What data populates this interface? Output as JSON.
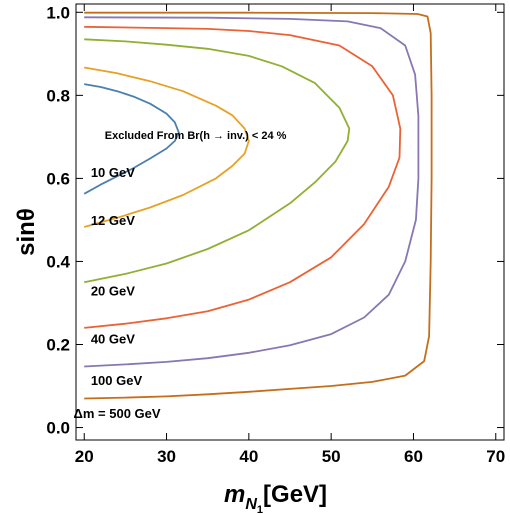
{
  "chart_data": {
    "type": "line",
    "title": "",
    "xlabel": "m",
    "xlabel_sub": "N",
    "xlabel_subsub": "1",
    "xlabel_unit": "[GeV]",
    "ylabel": "sinθ",
    "xlim": [
      19,
      71
    ],
    "ylim": [
      -0.03,
      1.02
    ],
    "xticks": [
      20,
      30,
      40,
      50,
      60,
      70
    ],
    "yticks": [
      0.0,
      0.2,
      0.4,
      0.6,
      0.8,
      1.0
    ],
    "xtick_labels": [
      "20",
      "30",
      "40",
      "50",
      "60",
      "70"
    ],
    "ytick_labels": [
      "0.0",
      "0.2",
      "0.4",
      "0.6",
      "0.8",
      "1.0"
    ],
    "grid": false,
    "annotation": "Excluded From  Br(h → inv.) <  24 %",
    "series": [
      {
        "color": "#4a7fb0",
        "label": "10 GeV",
        "points": [
          [
            20,
            0.563
          ],
          [
            22,
            0.585
          ],
          [
            24,
            0.605
          ],
          [
            26,
            0.625
          ],
          [
            28,
            0.648
          ],
          [
            30,
            0.672
          ],
          [
            31,
            0.69
          ],
          [
            31.5,
            0.71
          ],
          [
            31,
            0.735
          ],
          [
            30,
            0.756
          ],
          [
            28,
            0.78
          ],
          [
            26,
            0.797
          ],
          [
            24,
            0.81
          ],
          [
            22,
            0.82
          ],
          [
            20,
            0.827
          ]
        ]
      },
      {
        "color": "#e6a127",
        "label": "12 GeV",
        "points": [
          [
            20,
            0.483
          ],
          [
            24,
            0.505
          ],
          [
            28,
            0.53
          ],
          [
            32,
            0.56
          ],
          [
            36,
            0.6
          ],
          [
            38,
            0.63
          ],
          [
            39.5,
            0.66
          ],
          [
            40,
            0.69
          ],
          [
            39.5,
            0.72
          ],
          [
            38,
            0.752
          ],
          [
            36,
            0.775
          ],
          [
            32,
            0.81
          ],
          [
            28,
            0.834
          ],
          [
            24,
            0.853
          ],
          [
            20,
            0.867
          ]
        ]
      },
      {
        "color": "#8fb032",
        "label": "20 GeV",
        "points": [
          [
            20,
            0.35
          ],
          [
            25,
            0.37
          ],
          [
            30,
            0.395
          ],
          [
            35,
            0.43
          ],
          [
            40,
            0.475
          ],
          [
            45,
            0.54
          ],
          [
            48,
            0.59
          ],
          [
            50.5,
            0.64
          ],
          [
            52,
            0.69
          ],
          [
            52.2,
            0.72
          ],
          [
            51,
            0.77
          ],
          [
            48,
            0.83
          ],
          [
            44,
            0.87
          ],
          [
            40,
            0.895
          ],
          [
            35,
            0.912
          ],
          [
            30,
            0.922
          ],
          [
            25,
            0.93
          ],
          [
            20,
            0.935
          ]
        ]
      },
      {
        "color": "#eb6235",
        "label": "40 GeV",
        "points": [
          [
            20,
            0.24
          ],
          [
            25,
            0.25
          ],
          [
            30,
            0.263
          ],
          [
            35,
            0.28
          ],
          [
            40,
            0.308
          ],
          [
            45,
            0.35
          ],
          [
            50,
            0.41
          ],
          [
            54,
            0.49
          ],
          [
            57,
            0.58
          ],
          [
            58.3,
            0.65
          ],
          [
            58.4,
            0.72
          ],
          [
            57.5,
            0.8
          ],
          [
            55,
            0.87
          ],
          [
            51,
            0.92
          ],
          [
            45,
            0.945
          ],
          [
            40,
            0.955
          ],
          [
            35,
            0.96
          ],
          [
            30,
            0.962
          ],
          [
            20,
            0.965
          ]
        ]
      },
      {
        "color": "#8778b3",
        "label": "100 GeV",
        "points": [
          [
            20,
            0.147
          ],
          [
            25,
            0.152
          ],
          [
            30,
            0.158
          ],
          [
            35,
            0.167
          ],
          [
            40,
            0.18
          ],
          [
            45,
            0.198
          ],
          [
            50,
            0.225
          ],
          [
            54,
            0.265
          ],
          [
            57,
            0.32
          ],
          [
            59,
            0.4
          ],
          [
            60.3,
            0.5
          ],
          [
            60.6,
            0.6
          ],
          [
            60.6,
            0.75
          ],
          [
            60.2,
            0.85
          ],
          [
            59,
            0.92
          ],
          [
            56,
            0.962
          ],
          [
            52,
            0.978
          ],
          [
            45,
            0.984
          ],
          [
            35,
            0.987
          ],
          [
            20,
            0.988
          ]
        ]
      },
      {
        "color": "#c56e1a",
        "label": "Δm = 500 GeV",
        "points": [
          [
            20,
            0.07
          ],
          [
            25,
            0.072
          ],
          [
            30,
            0.075
          ],
          [
            35,
            0.08
          ],
          [
            40,
            0.086
          ],
          [
            45,
            0.093
          ],
          [
            50,
            0.1
          ],
          [
            55,
            0.11
          ],
          [
            59,
            0.125
          ],
          [
            61.3,
            0.16
          ],
          [
            61.9,
            0.22
          ],
          [
            62.1,
            0.4
          ],
          [
            62.2,
            0.6
          ],
          [
            62.2,
            0.8
          ],
          [
            62.1,
            0.95
          ],
          [
            61.7,
            0.99
          ],
          [
            60.5,
            0.996
          ],
          [
            55,
            0.998
          ],
          [
            40,
            0.999
          ],
          [
            20,
            0.999
          ]
        ]
      }
    ],
    "curve_label_positions": [
      {
        "label": "10 GeV",
        "x": 20.8,
        "y": 0.615
      },
      {
        "label": "12 GeV",
        "x": 20.8,
        "y": 0.5
      },
      {
        "label": "20 GeV",
        "x": 20.8,
        "y": 0.33
      },
      {
        "label": "40 GeV",
        "x": 20.8,
        "y": 0.215
      },
      {
        "label": "100 GeV",
        "x": 20.8,
        "y": 0.115
      },
      {
        "label": "Δm = 500 GeV",
        "x": 18.7,
        "y": 0.035
      }
    ],
    "annotation_position": {
      "x": 22.5,
      "y": 0.705
    }
  }
}
